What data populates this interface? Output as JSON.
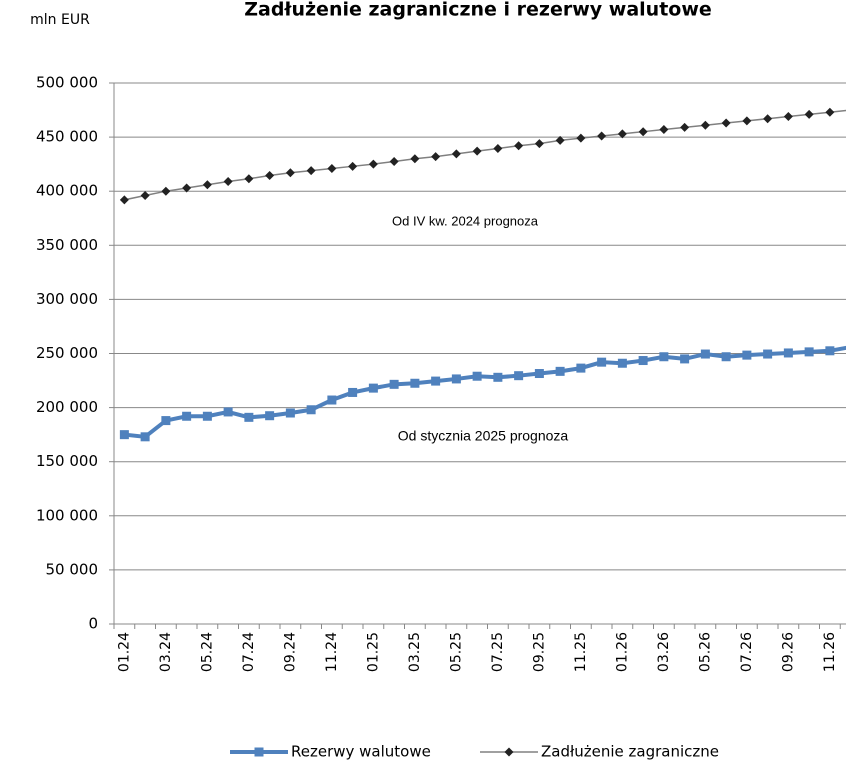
{
  "chart_data": {
    "type": "line",
    "title": "Zadłużenie zagraniczne i rezerwy walutowe",
    "y_axis_label": "mln EUR",
    "annotations": [
      "Od IV kw. 2024 prognoza",
      "Od stycznia 2025 prognoza"
    ],
    "categories": [
      "01.24",
      null,
      "03.24",
      null,
      "05.24",
      null,
      "07.24",
      null,
      "09.24",
      null,
      "11.24",
      null,
      "01.25",
      null,
      "03.25",
      null,
      "05.25",
      null,
      "07.25",
      null,
      "09.25",
      null,
      "11.25",
      null,
      "01.26",
      null,
      "03.26",
      null,
      "05.26",
      null,
      "07.26",
      null,
      "09.26",
      null,
      "11.26",
      null
    ],
    "series": [
      {
        "name": "Rezerwy walutowe",
        "color": "#4f81bd",
        "marker": "square",
        "values": [
          175000,
          173000,
          188000,
          192000,
          192000,
          196000,
          191000,
          192500,
          195000,
          198000,
          207000,
          214000,
          218000,
          221500,
          222500,
          224500,
          226500,
          229000,
          228000,
          229500,
          231500,
          233500,
          236500,
          242000,
          241000,
          243500,
          247000,
          245000,
          249500,
          247000,
          248500,
          249500,
          250500,
          251500,
          252500,
          256000
        ]
      },
      {
        "name": "Zadłużenie zagraniczne",
        "color": "#808080",
        "marker": "diamond",
        "values": [
          392000,
          396000,
          400000,
          403000,
          406000,
          409000,
          411500,
          414500,
          417000,
          419000,
          421000,
          423000,
          425000,
          427500,
          430000,
          432000,
          434500,
          437000,
          439500,
          442000,
          444000,
          447000,
          449000,
          451000,
          453000,
          455000,
          457000,
          459000,
          461000,
          463000,
          465000,
          467000,
          469000,
          471000,
          473000,
          475000
        ]
      }
    ],
    "ylim": [
      0,
      500000
    ],
    "yticks": [
      0,
      {
        "value": 50000,
        "label": "50 000"
      },
      {
        "value": 100000,
        "label": "100 000"
      },
      {
        "value": 150000,
        "label": "150 000"
      },
      {
        "value": 200000,
        "label": "200 000"
      },
      {
        "value": 250000,
        "label": "250 000"
      },
      {
        "value": 300000,
        "label": "300 000"
      },
      {
        "value": 350000,
        "label": "350 000"
      },
      {
        "value": 400000,
        "label": "400 000"
      },
      {
        "value": 450000,
        "label": "450 000"
      },
      {
        "value": 500000,
        "label": "500 000"
      }
    ],
    "grid": true,
    "legend": "bottom"
  }
}
